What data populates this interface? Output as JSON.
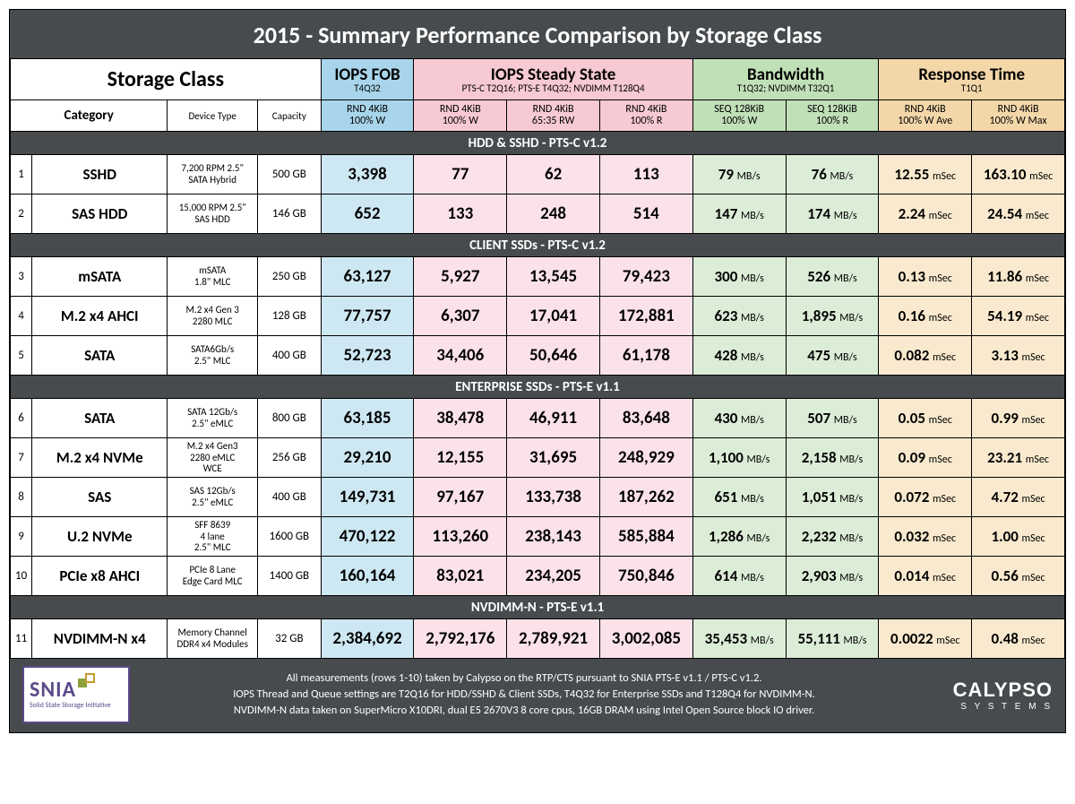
{
  "title": "2015 - Summary Performance Comparison by Storage Class",
  "header": {
    "storage_class": "Storage Class",
    "category": "Category",
    "device_type": "Device Type",
    "capacity": "Capacity",
    "groups": [
      {
        "label": "IOPS FOB",
        "sub": "T4Q32",
        "class": "blue",
        "span": 1
      },
      {
        "label": "IOPS Steady State",
        "sub": "PTS-C T2Q16; PTS-E T4Q32; NVDIMM T128Q4",
        "class": "pink",
        "span": 3
      },
      {
        "label": "Bandwidth",
        "sub": "T1Q32; NVDIMM T32Q1",
        "class": "green",
        "span": 2
      },
      {
        "label": "Response Time",
        "sub": "T1Q1",
        "class": "tan",
        "span": 2
      }
    ],
    "metrics": [
      {
        "l1": "RND 4KiB",
        "l2": "100% W",
        "class": "blue"
      },
      {
        "l1": "RND 4KiB",
        "l2": "100% W",
        "class": "pink"
      },
      {
        "l1": "RND 4KiB",
        "l2": "65:35 RW",
        "class": "pink"
      },
      {
        "l1": "RND 4KiB",
        "l2": "100% R",
        "class": "pink"
      },
      {
        "l1": "SEQ 128KiB",
        "l2": "100% W",
        "class": "green"
      },
      {
        "l1": "SEQ 128KiB",
        "l2": "100% R",
        "class": "green"
      },
      {
        "l1": "RND 4KiB",
        "l2": "100% W Ave",
        "class": "tan"
      },
      {
        "l1": "RND 4KiB",
        "l2": "100% W Max",
        "class": "tan"
      }
    ]
  },
  "colwidths": {
    "rownum": 24,
    "category": 150,
    "devtype": 100,
    "capacity": 70,
    "metric": 103
  },
  "sections": [
    {
      "title": "HDD & SSHD - PTS-C v1.2",
      "rows": [
        {
          "n": "1",
          "cat": "SSHD",
          "dev": "7,200 RPM 2.5\"\nSATA Hybrid",
          "cap": "500 GB",
          "v": [
            "3,398",
            "77",
            "62",
            "113",
            "79",
            "76",
            "12.55",
            "163.10"
          ]
        },
        {
          "n": "2",
          "cat": "SAS HDD",
          "dev": "15,000 RPM 2.5\"\nSAS HDD",
          "cap": "146 GB",
          "v": [
            "652",
            "133",
            "248",
            "514",
            "147",
            "174",
            "2.24",
            "24.54"
          ]
        }
      ]
    },
    {
      "title": "CLIENT SSDs - PTS-C v1.2",
      "rows": [
        {
          "n": "3",
          "cat": "mSATA",
          "dev": "mSATA\n1.8\" MLC",
          "cap": "250 GB",
          "v": [
            "63,127",
            "5,927",
            "13,545",
            "79,423",
            "300",
            "526",
            "0.13",
            "11.86"
          ]
        },
        {
          "n": "4",
          "cat": "M.2 x4 AHCI",
          "dev": "M.2 x4 Gen 3\n2280 MLC",
          "cap": "128 GB",
          "v": [
            "77,757",
            "6,307",
            "17,041",
            "172,881",
            "623",
            "1,895",
            "0.16",
            "54.19"
          ]
        },
        {
          "n": "5",
          "cat": "SATA",
          "dev": "SATA6Gb/s\n2.5\" MLC",
          "cap": "400 GB",
          "v": [
            "52,723",
            "34,406",
            "50,646",
            "61,178",
            "428",
            "475",
            "0.082",
            "3.13"
          ]
        }
      ]
    },
    {
      "title": "ENTERPRISE SSDs - PTS-E v1.1",
      "rows": [
        {
          "n": "6",
          "cat": "SATA",
          "dev": "SATA 12Gb/s\n2.5\" eMLC",
          "cap": "800 GB",
          "v": [
            "63,185",
            "38,478",
            "46,911",
            "83,648",
            "430",
            "507",
            "0.05",
            "0.99"
          ]
        },
        {
          "n": "7",
          "cat": "M.2 x4 NVMe",
          "dev": "M.2 x4 Gen3\n2280 eMLC\nWCE",
          "cap": "256 GB",
          "v": [
            "29,210",
            "12,155",
            "31,695",
            "248,929",
            "1,100",
            "2,158",
            "0.09",
            "23.21"
          ]
        },
        {
          "n": "8",
          "cat": "SAS",
          "dev": "SAS 12Gb/s\n2.5\" eMLC",
          "cap": "400 GB",
          "v": [
            "149,731",
            "97,167",
            "133,738",
            "187,262",
            "651",
            "1,051",
            "0.072",
            "4.72"
          ]
        },
        {
          "n": "9",
          "cat": "U.2 NVMe",
          "dev": "SFF 8639\n4 lane\n2.5\" MLC",
          "cap": "1600 GB",
          "v": [
            "470,122",
            "113,260",
            "238,143",
            "585,884",
            "1,286",
            "2,232",
            "0.032",
            "1.00"
          ]
        },
        {
          "n": "10",
          "cat": "PCIe x8 AHCI",
          "dev": "PCIe 8 Lane\nEdge Card MLC",
          "cap": "1400 GB",
          "v": [
            "160,164",
            "83,021",
            "234,205",
            "750,846",
            "614",
            "2,903",
            "0.014",
            "0.56"
          ]
        }
      ]
    },
    {
      "title": "NVDIMM-N - PTS-E v1.1",
      "rows": [
        {
          "n": "11",
          "cat": "NVDIMM-N x4",
          "dev": "Memory Channel\nDDR4 x4 Modules",
          "cap": "32 GB",
          "v": [
            "2,384,692",
            "2,792,176",
            "2,789,921",
            "3,002,085",
            "35,453",
            "55,111",
            "0.0022",
            "0.48"
          ]
        }
      ]
    }
  ],
  "units": {
    "bw": "MB/s",
    "rt": "mSec"
  },
  "col_classes": [
    "blue",
    "pink",
    "pink",
    "pink",
    "green",
    "green",
    "tan",
    "tan"
  ],
  "col_kind": [
    "iops",
    "iops",
    "iops",
    "iops",
    "bw",
    "bw",
    "rt",
    "rt"
  ],
  "footer": {
    "line1": "All measurements (rows 1-10) taken by Calypso on the RTP/CTS pursuant to SNIA PTS-E v1.1 / PTS-C v1.2.",
    "line2": "IOPS Thread and Queue settings are T2Q16 for HDD/SSHD & Client SSDs, T4Q32 for Enterprise SSDs and T128Q4 for NVDIMM-N.",
    "line3": "NVDIMM-N data taken on SuperMicro X10DRI, dual E5 2670V3 8 core cpus, 16GB DRAM using Intel Open Source block IO driver."
  },
  "logos": {
    "snia_big": "SNIA",
    "snia_small": "Solid State Storage Initiative",
    "calypso_big": "CALYPSO",
    "calypso_small": "S Y S T E M S"
  }
}
